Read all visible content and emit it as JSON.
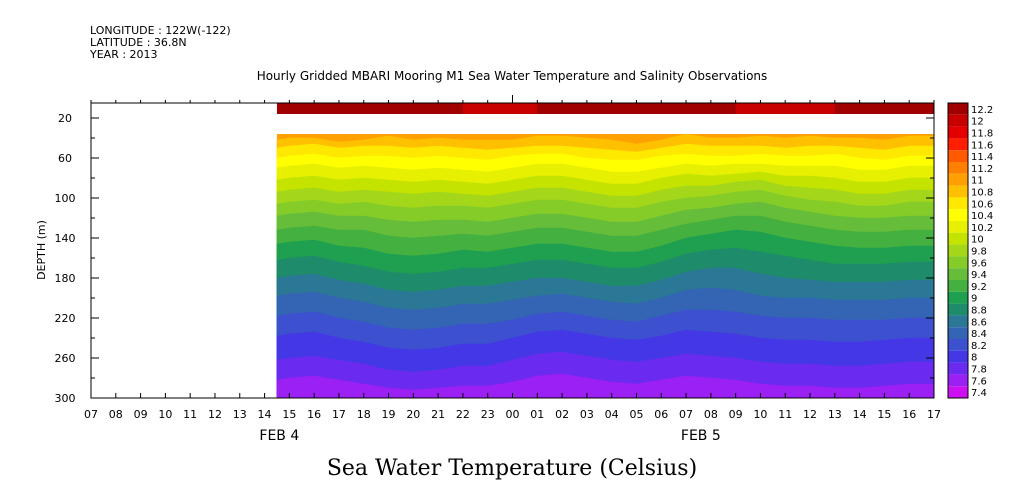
{
  "header": {
    "longitude": "LONGITUDE : 122W(-122)",
    "latitude": "LATITUDE : 36.8N",
    "year": "YEAR : 2013"
  },
  "chart_data": {
    "type": "heatmap",
    "title": "Hourly Gridded MBARI Mooring M1 Sea Water Temperature and Salinity Observations",
    "subtitle": "Sea Water Temperature (Celsius)",
    "ylabel": "DEPTH (m)",
    "xlabel": "",
    "y_axis": {
      "ylim": [
        300,
        5
      ],
      "inverted": true,
      "tick_values": [
        20,
        60,
        100,
        140,
        180,
        220,
        260,
        300
      ]
    },
    "x_axis": {
      "hours": [
        "07",
        "08",
        "09",
        "10",
        "11",
        "12",
        "13",
        "14",
        "15",
        "16",
        "17",
        "18",
        "19",
        "20",
        "21",
        "22",
        "23",
        "00",
        "01",
        "02",
        "03",
        "04",
        "05",
        "06",
        "07",
        "08",
        "09",
        "10",
        "11",
        "12",
        "13",
        "14",
        "15",
        "16",
        "17"
      ],
      "date_labels": [
        {
          "label": "FEB 4",
          "at_hour_index": 8
        },
        {
          "label": "FEB 5",
          "at_hour_index": 25
        }
      ],
      "data_starts_at_hour_index": 7.5
    },
    "colorbar": {
      "levels": [
        12.2,
        12,
        11.8,
        11.6,
        11.4,
        11.2,
        11,
        10.8,
        10.6,
        10.4,
        10.2,
        10,
        9.8,
        9.6,
        9.4,
        9.2,
        9,
        8.8,
        8.6,
        8.4,
        8.2,
        8,
        7.8,
        7.6,
        7.4
      ],
      "colors": [
        "#a00000",
        "#c80000",
        "#e40000",
        "#ff1e00",
        "#ff5a00",
        "#ff8000",
        "#ffa000",
        "#ffc000",
        "#ffe800",
        "#ffff00",
        "#e6f000",
        "#c4e400",
        "#a4d61a",
        "#86cc28",
        "#66bd3a",
        "#44b040",
        "#1ea050",
        "#1e8c6a",
        "#2a7896",
        "#3464b4",
        "#3c50d0",
        "#4438e6",
        "#6a2af0",
        "#9a20f4",
        "#cc10f0"
      ],
      "label_values": [
        "12.2",
        "12",
        "11.8",
        "11.6",
        "11.4",
        "11.2",
        "11",
        "10.8",
        "10.6",
        "10.4",
        "10.2",
        "10",
        "9.8",
        "9.6",
        "9.4",
        "9.2",
        "9",
        "8.8",
        "8.6",
        "8.4",
        "8.2",
        "8",
        "7.8",
        "7.6",
        "7.4"
      ]
    },
    "data_layers": {
      "surface_band": {
        "depth_range_m": [
          5,
          16
        ],
        "value": 12.1
      },
      "empty_depth_range_m": [
        16,
        36
      ],
      "profile_column_hours": [
        "14.5",
        "15",
        "16",
        "17",
        "18",
        "19",
        "20",
        "21",
        "22",
        "23",
        "00",
        "01",
        "02",
        "03",
        "04",
        "05",
        "06",
        "07",
        "08",
        "09",
        "10",
        "11",
        "12",
        "13",
        "14",
        "15",
        "16",
        "17"
      ],
      "isotherm_depths_m": [
        {
          "value": 10.8,
          "depths": [
            42,
            40,
            40,
            44,
            42,
            38,
            42,
            40,
            42,
            42,
            42,
            38,
            38,
            40,
            42,
            46,
            42,
            36,
            40,
            40,
            38,
            40,
            38,
            40,
            40,
            42,
            38,
            38
          ]
        },
        {
          "value": 10.6,
          "depths": [
            50,
            48,
            46,
            50,
            48,
            48,
            50,
            48,
            50,
            52,
            50,
            48,
            48,
            50,
            52,
            54,
            50,
            46,
            48,
            48,
            48,
            50,
            48,
            48,
            50,
            52,
            48,
            48
          ]
        },
        {
          "value": 10.4,
          "depths": [
            60,
            58,
            56,
            60,
            58,
            58,
            60,
            58,
            60,
            62,
            58,
            56,
            56,
            60,
            62,
            62,
            58,
            56,
            58,
            58,
            56,
            58,
            58,
            56,
            60,
            62,
            58,
            58
          ]
        },
        {
          "value": 10.2,
          "depths": [
            70,
            68,
            66,
            70,
            68,
            70,
            72,
            70,
            72,
            74,
            70,
            66,
            66,
            70,
            74,
            74,
            70,
            66,
            68,
            66,
            66,
            68,
            68,
            68,
            72,
            72,
            68,
            68
          ]
        },
        {
          "value": 10.0,
          "depths": [
            82,
            80,
            78,
            82,
            80,
            82,
            84,
            82,
            84,
            86,
            82,
            78,
            78,
            82,
            86,
            86,
            80,
            76,
            78,
            76,
            74,
            78,
            78,
            80,
            84,
            84,
            80,
            80
          ]
        },
        {
          "value": 9.8,
          "depths": [
            94,
            92,
            90,
            94,
            92,
            94,
            96,
            94,
            96,
            98,
            94,
            90,
            90,
            94,
            98,
            98,
            92,
            88,
            88,
            84,
            82,
            88,
            90,
            92,
            96,
            96,
            92,
            92
          ]
        },
        {
          "value": 9.6,
          "depths": [
            106,
            104,
            102,
            106,
            104,
            108,
            110,
            108,
            108,
            110,
            106,
            102,
            102,
            106,
            110,
            110,
            104,
            100,
            98,
            94,
            92,
            98,
            102,
            104,
            108,
            108,
            104,
            104
          ]
        },
        {
          "value": 9.4,
          "depths": [
            118,
            116,
            114,
            118,
            118,
            122,
            124,
            122,
            122,
            124,
            120,
            116,
            116,
            120,
            124,
            124,
            118,
            112,
            110,
            106,
            104,
            110,
            114,
            118,
            120,
            120,
            118,
            118
          ]
        },
        {
          "value": 9.2,
          "depths": [
            132,
            130,
            128,
            132,
            132,
            138,
            140,
            138,
            136,
            138,
            134,
            130,
            130,
            134,
            138,
            138,
            132,
            126,
            122,
            118,
            118,
            124,
            128,
            132,
            134,
            134,
            132,
            132
          ]
        },
        {
          "value": 9.0,
          "depths": [
            146,
            144,
            142,
            148,
            150,
            156,
            158,
            156,
            152,
            154,
            150,
            146,
            146,
            150,
            154,
            154,
            148,
            140,
            136,
            132,
            134,
            140,
            144,
            148,
            150,
            150,
            148,
            148
          ]
        },
        {
          "value": 8.8,
          "depths": [
            162,
            160,
            158,
            164,
            168,
            174,
            176,
            174,
            170,
            170,
            166,
            162,
            162,
            166,
            170,
            170,
            164,
            156,
            152,
            150,
            154,
            158,
            162,
            166,
            166,
            166,
            164,
            164
          ]
        },
        {
          "value": 8.6,
          "depths": [
            180,
            178,
            176,
            182,
            186,
            192,
            194,
            192,
            188,
            188,
            184,
            180,
            180,
            184,
            188,
            188,
            182,
            174,
            170,
            170,
            176,
            180,
            182,
            184,
            184,
            184,
            182,
            182
          ]
        },
        {
          "value": 8.4,
          "depths": [
            198,
            196,
            194,
            200,
            204,
            210,
            212,
            210,
            206,
            206,
            202,
            198,
            196,
            200,
            204,
            206,
            200,
            192,
            190,
            192,
            198,
            200,
            200,
            202,
            202,
            202,
            200,
            200
          ]
        },
        {
          "value": 8.2,
          "depths": [
            218,
            216,
            214,
            220,
            224,
            230,
            232,
            230,
            226,
            226,
            222,
            216,
            214,
            218,
            222,
            224,
            218,
            212,
            212,
            214,
            218,
            220,
            220,
            222,
            222,
            222,
            220,
            220
          ]
        },
        {
          "value": 8.0,
          "depths": [
            238,
            236,
            234,
            240,
            244,
            250,
            252,
            250,
            246,
            246,
            240,
            234,
            232,
            236,
            240,
            242,
            238,
            232,
            234,
            236,
            240,
            242,
            242,
            244,
            244,
            242,
            240,
            240
          ]
        },
        {
          "value": 7.8,
          "depths": [
            262,
            260,
            258,
            262,
            266,
            272,
            274,
            272,
            268,
            268,
            262,
            256,
            254,
            258,
            262,
            264,
            260,
            256,
            258,
            260,
            264,
            266,
            266,
            268,
            268,
            266,
            264,
            264
          ]
        },
        {
          "value": 7.6,
          "depths": [
            282,
            280,
            278,
            282,
            286,
            290,
            292,
            290,
            288,
            288,
            284,
            278,
            276,
            280,
            284,
            286,
            282,
            278,
            280,
            282,
            286,
            288,
            288,
            290,
            290,
            288,
            286,
            286
          ]
        }
      ],
      "deep_values_note_levels": {
        "orange_max": 11.0,
        "bottom_min": 7.4
      }
    }
  }
}
